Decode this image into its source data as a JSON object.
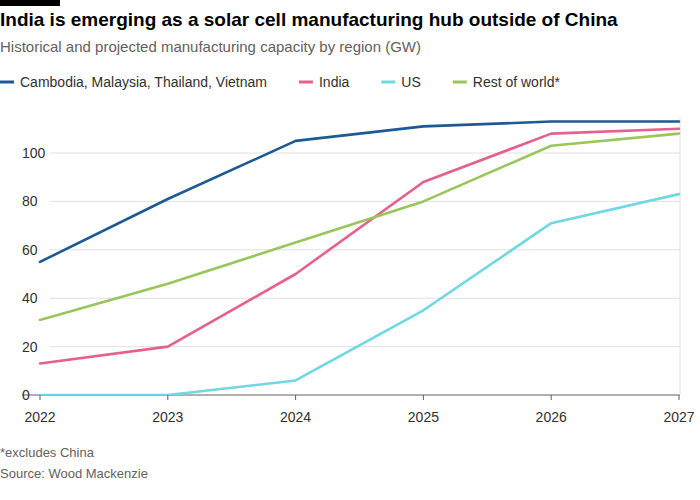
{
  "chart_data": {
    "type": "line",
    "title": "India is emerging as a solar cell manufacturing hub outside of China",
    "subtitle": "Historical and projected manufacturing capacity by region (GW)",
    "x": [
      2022,
      2023,
      2024,
      2025,
      2026,
      2027
    ],
    "xlim": [
      2022,
      2027
    ],
    "xticks": [
      2022,
      2023,
      2024,
      2025,
      2026,
      2027
    ],
    "ylim": [
      0,
      115
    ],
    "yticks": [
      0,
      20,
      40,
      60,
      80,
      100
    ],
    "grid": true,
    "legend": "top-left",
    "series": [
      {
        "name": "Cambodia, Malaysia, Thailand, Vietnam",
        "color": "#1d5a94",
        "values": [
          55,
          81,
          105,
          111,
          113,
          113
        ]
      },
      {
        "name": "India",
        "color": "#e5608e",
        "values": [
          13,
          20,
          50,
          88,
          108,
          110
        ]
      },
      {
        "name": "US",
        "color": "#6fd8e3",
        "values": [
          0,
          0,
          6,
          35,
          71,
          83
        ]
      },
      {
        "name": "Rest of world*",
        "color": "#99c65a",
        "values": [
          31,
          46,
          63,
          80,
          103,
          108
        ]
      }
    ],
    "footnote": "*excludes China",
    "source": "Source: Wood Mackenzie"
  }
}
